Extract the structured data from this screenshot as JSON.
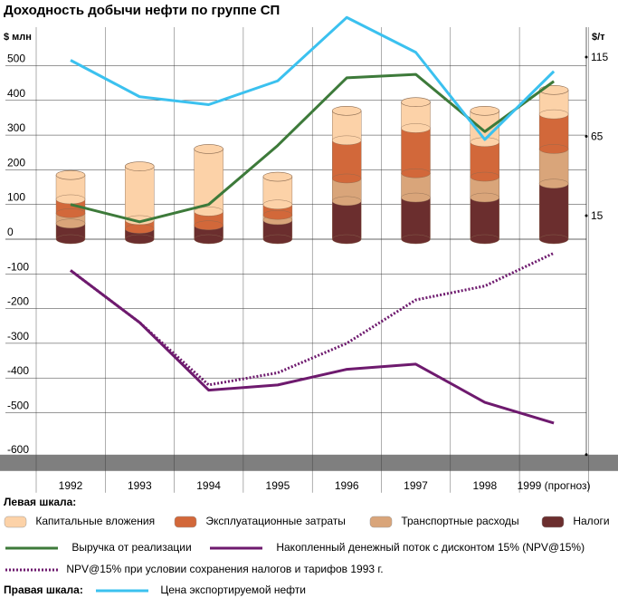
{
  "title": "Доходность добычи нефти по группе СП",
  "chart_data": {
    "type": "bar",
    "categories": [
      "1992",
      "1993",
      "1994",
      "1995",
      "1996",
      "1997",
      "1998",
      "1999 (прогноз)"
    ],
    "left_axis": {
      "label": "$ млн",
      "range": [
        -600,
        500
      ],
      "ticks": [
        "500",
        "400",
        "300",
        "200",
        "100",
        "0",
        "-100",
        "-200",
        "-300",
        "-400",
        "-500",
        "-600"
      ]
    },
    "right_axis": {
      "label": "$/т",
      "ticks": [
        "115",
        "65",
        "15"
      ]
    },
    "stacked_bars": [
      {
        "name": "Налоги",
        "color": "#6b2e2e",
        "values": [
          45,
          30,
          40,
          55,
          110,
          120,
          120,
          160
        ]
      },
      {
        "name": "Транспортные расходы",
        "color": "#d9a57a",
        "values": [
          30,
          0,
          0,
          15,
          65,
          70,
          60,
          100
        ]
      },
      {
        "name": "Эксплуатационные затраты",
        "color": "#d2683a",
        "values": [
          40,
          25,
          40,
          30,
          110,
          130,
          100,
          100
        ]
      },
      {
        "name": "Капитальные вложения",
        "color": "#fcd2a8",
        "values": [
          70,
          155,
          180,
          80,
          85,
          75,
          90,
          70
        ]
      }
    ],
    "line_series": [
      {
        "name": "Выручка от реализации",
        "color": "#3d7a3a",
        "axis": "left",
        "style": "solid",
        "values": [
          100,
          50,
          100,
          270,
          465,
          475,
          310,
          455
        ]
      },
      {
        "name": "Накопленный денежный поток с дисконтом 15% (NPV@15%)",
        "color": "#6e1a6e",
        "axis": "left",
        "style": "solid",
        "values": [
          -90,
          -240,
          -435,
          -420,
          -375,
          -360,
          -470,
          -530
        ]
      },
      {
        "name": "NPV@15% при условии сохранения налогов и тарифов 1993 г.",
        "color": "#6e1a6e",
        "axis": "left",
        "style": "dotted",
        "values": [
          -90,
          -240,
          -420,
          -385,
          -300,
          -175,
          -135,
          -40
        ]
      },
      {
        "name": "Цена экспортируемой нефти",
        "color": "#3bc1ef",
        "axis": "right",
        "style": "solid",
        "values": [
          113,
          90,
          85,
          100,
          140,
          118,
          63,
          106
        ]
      }
    ]
  },
  "legend": {
    "left_scale_label": "Левая шкала:",
    "right_scale_label": "Правая шкала:",
    "items": {
      "capex": "Капитальные вложения",
      "opex": "Эксплуатационные затраты",
      "transport": "Транспортные расходы",
      "taxes": "Налоги",
      "revenue": "Выручка от реализации",
      "npv": "Накопленный денежный поток с дисконтом 15% (NPV@15%)",
      "npv_1993": "NPV@15% при условии сохранения налогов и тарифов 1993 г.",
      "oil_price": "Цена экспортируемой нефти"
    }
  }
}
